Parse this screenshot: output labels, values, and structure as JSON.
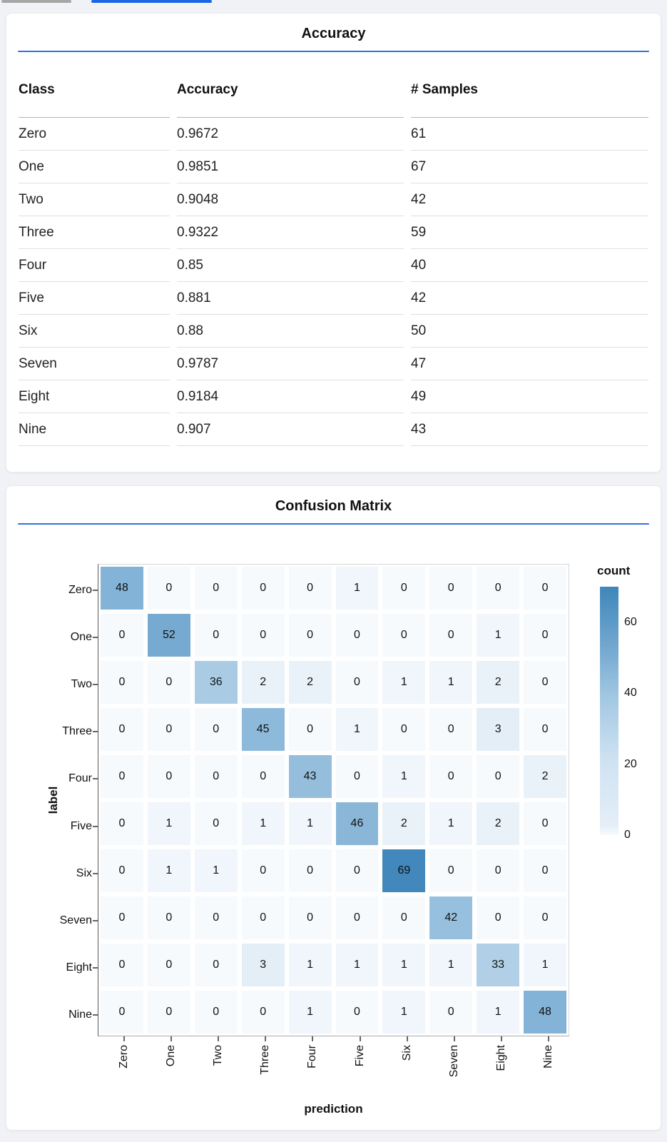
{
  "page": {
    "background_color": "#f0f2f6",
    "accent_blue": "#2b72e3",
    "tab_indicators": [
      {
        "name": "inactive",
        "color": "#a6a6a6"
      },
      {
        "name": "active",
        "color": "#1a67e4"
      }
    ]
  },
  "chart_data": [
    {
      "type": "table",
      "title": "Accuracy",
      "columns": [
        "Class",
        "Accuracy",
        "# Samples"
      ],
      "rows": [
        [
          "Zero",
          "0.9672",
          "61"
        ],
        [
          "One",
          "0.9851",
          "67"
        ],
        [
          "Two",
          "0.9048",
          "42"
        ],
        [
          "Three",
          "0.9322",
          "59"
        ],
        [
          "Four",
          "0.85",
          "40"
        ],
        [
          "Five",
          "0.881",
          "42"
        ],
        [
          "Six",
          "0.88",
          "50"
        ],
        [
          "Seven",
          "0.9787",
          "47"
        ],
        [
          "Eight",
          "0.9184",
          "49"
        ],
        [
          "Nine",
          "0.907",
          "43"
        ]
      ]
    },
    {
      "type": "heatmap",
      "title": "Confusion Matrix",
      "xlabel": "prediction",
      "ylabel": "label",
      "x_categories": [
        "Zero",
        "One",
        "Two",
        "Three",
        "Four",
        "Five",
        "Six",
        "Seven",
        "Eight",
        "Nine"
      ],
      "y_categories": [
        "Zero",
        "One",
        "Two",
        "Three",
        "Four",
        "Five",
        "Six",
        "Seven",
        "Eight",
        "Nine"
      ],
      "values": [
        [
          48,
          0,
          0,
          0,
          0,
          1,
          0,
          0,
          0,
          0
        ],
        [
          0,
          52,
          0,
          0,
          0,
          0,
          0,
          0,
          1,
          0
        ],
        [
          0,
          0,
          36,
          2,
          2,
          0,
          1,
          1,
          2,
          0
        ],
        [
          0,
          0,
          0,
          45,
          0,
          1,
          0,
          0,
          3,
          0
        ],
        [
          0,
          0,
          0,
          0,
          43,
          0,
          1,
          0,
          0,
          2
        ],
        [
          0,
          1,
          0,
          1,
          1,
          46,
          2,
          1,
          2,
          0
        ],
        [
          0,
          1,
          1,
          0,
          0,
          0,
          69,
          0,
          0,
          0
        ],
        [
          0,
          0,
          0,
          0,
          0,
          0,
          0,
          42,
          0,
          0
        ],
        [
          0,
          0,
          0,
          3,
          1,
          1,
          1,
          1,
          33,
          1
        ],
        [
          0,
          0,
          0,
          0,
          1,
          0,
          1,
          0,
          1,
          48
        ]
      ],
      "legend": {
        "title": "count",
        "ticks": [
          60,
          40,
          20,
          0
        ],
        "domain": [
          0,
          70
        ],
        "position": "right"
      },
      "colormap_stops": [
        [
          0,
          "#f6fafd"
        ],
        [
          0.04,
          "#e4eef7"
        ],
        [
          0.3,
          "#cfe2f2"
        ],
        [
          0.55,
          "#a3c8e2"
        ],
        [
          0.75,
          "#74a9d0"
        ],
        [
          1,
          "#3f86bb"
        ]
      ],
      "grid": false
    }
  ]
}
